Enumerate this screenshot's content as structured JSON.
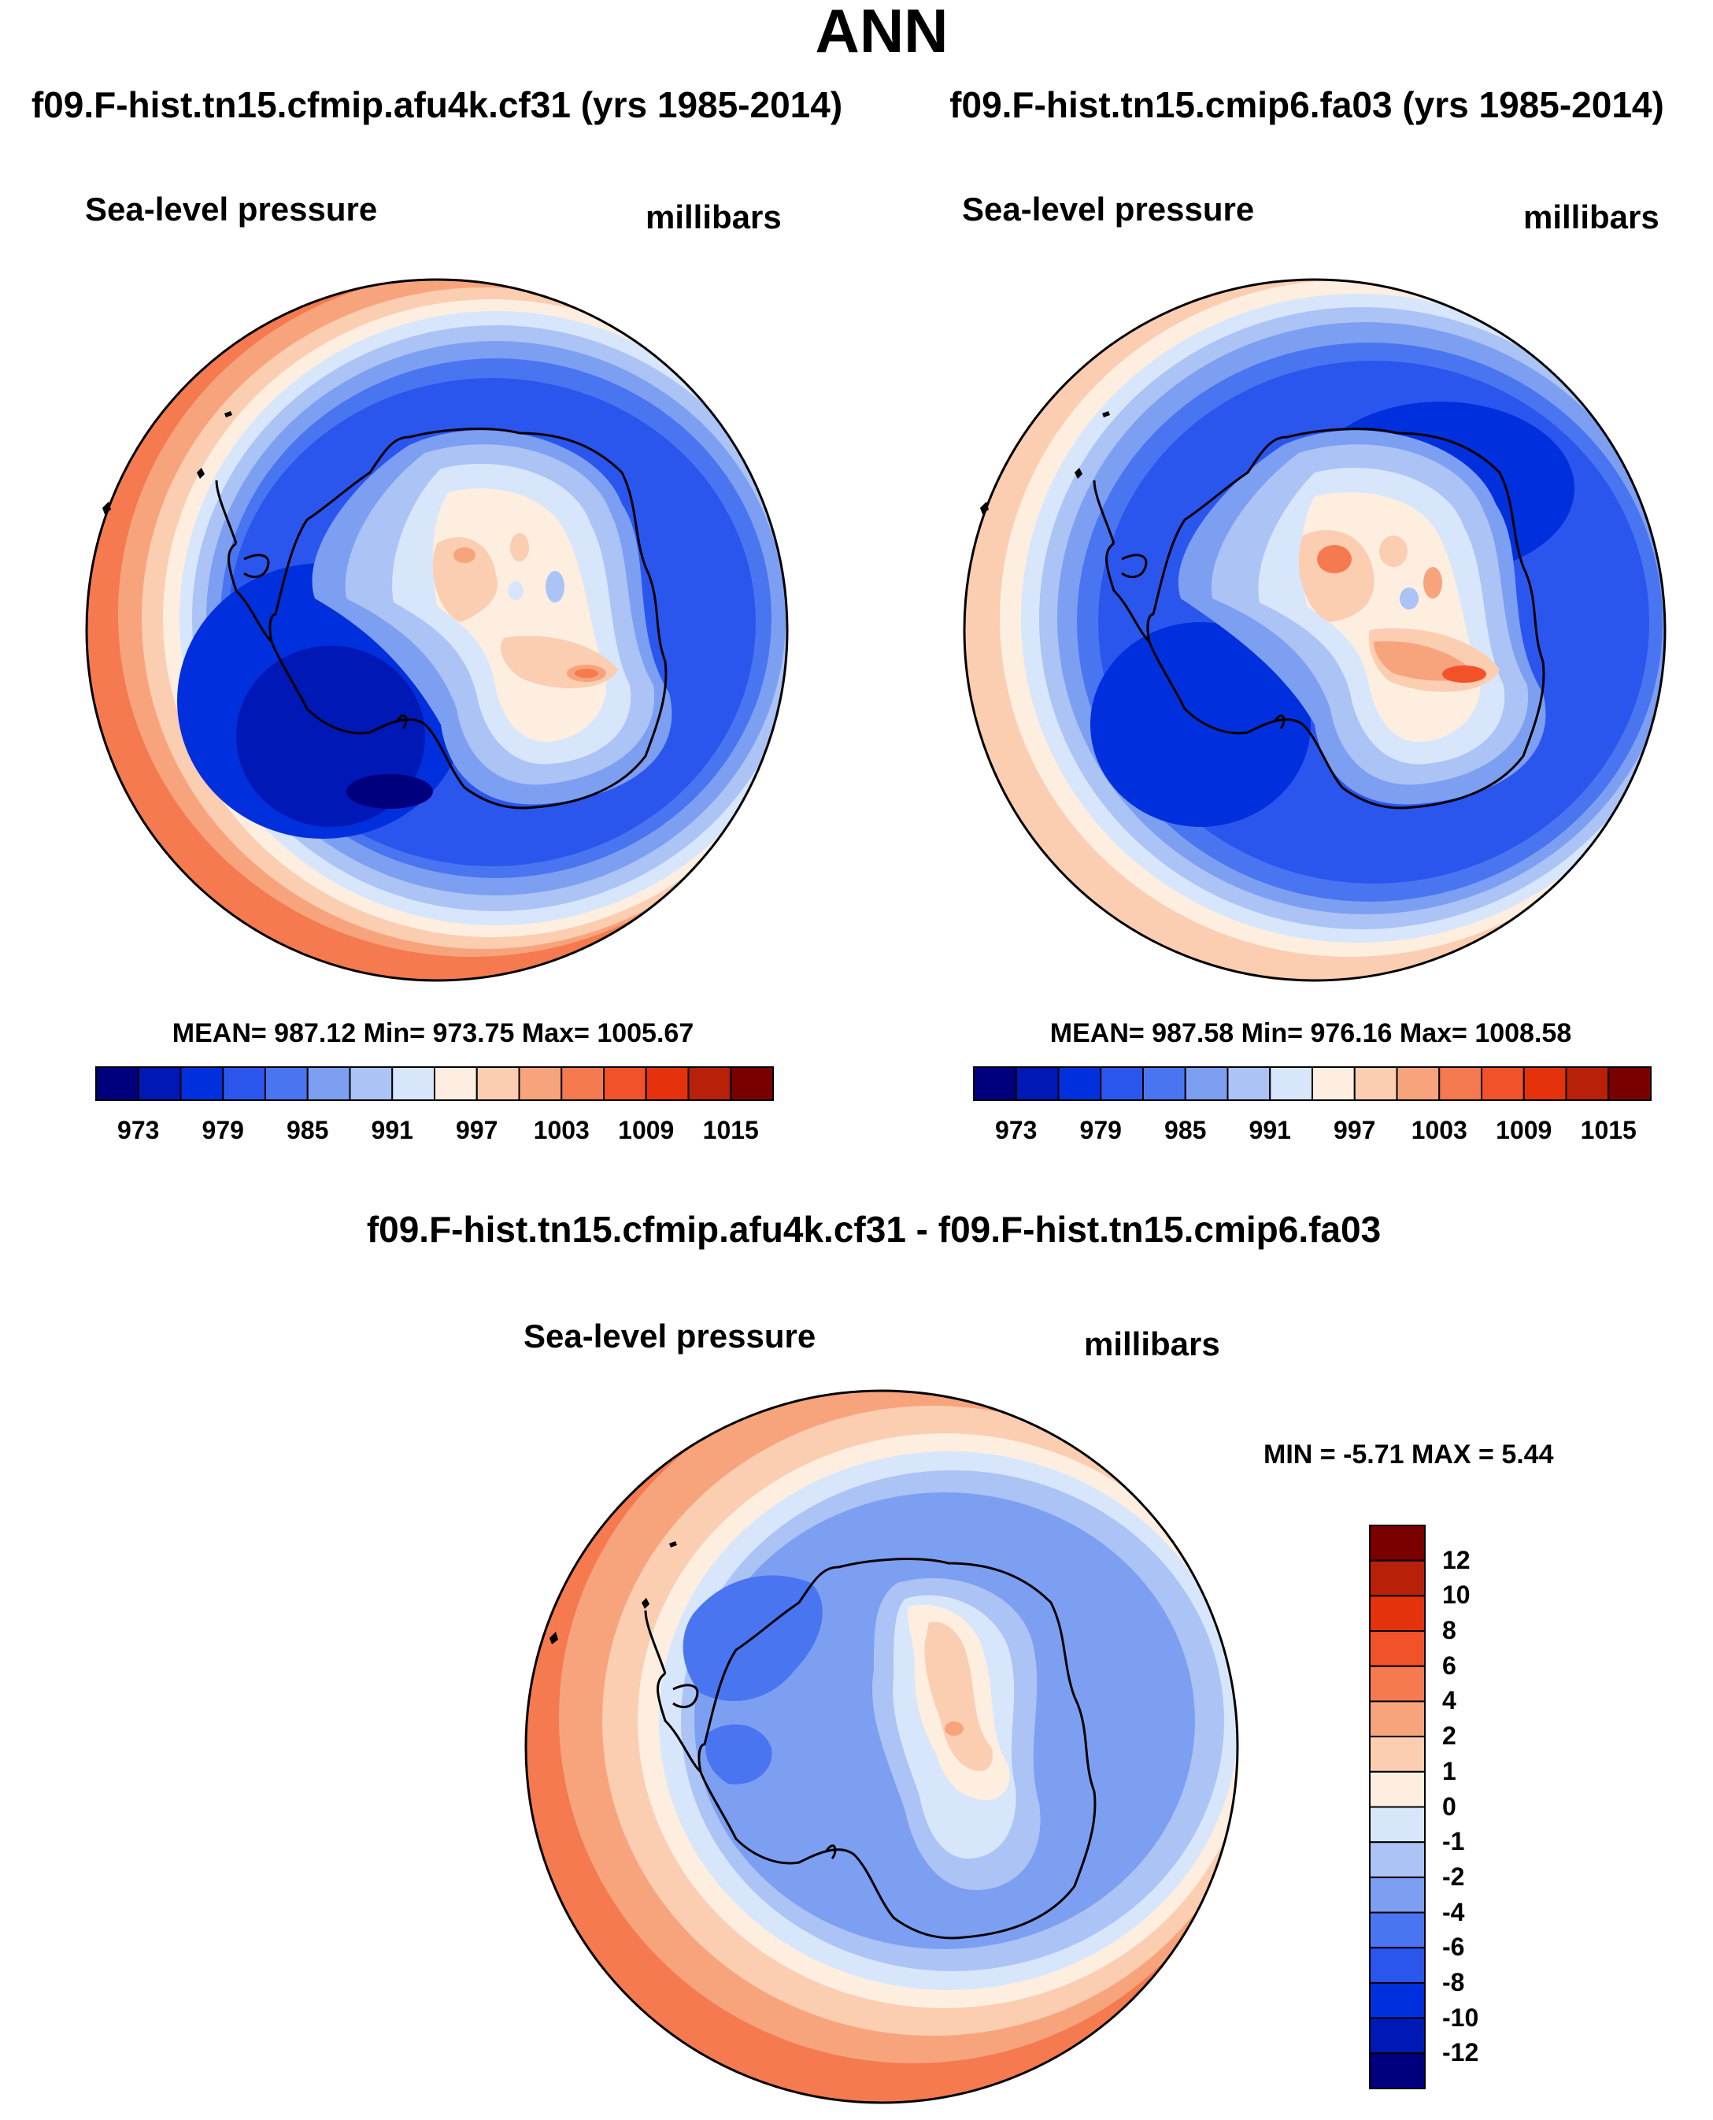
{
  "page": {
    "title": "ANN"
  },
  "colors": {
    "abs_scale": [
      "#00007f",
      "#0018b5",
      "#0030dd",
      "#2b56ee",
      "#4a75f0",
      "#7d9ff2",
      "#abc3f5",
      "#d7e6fb",
      "#fdeee0",
      "#fbcdb1",
      "#f7a47d",
      "#f57a4f",
      "#f2522a",
      "#e4320c",
      "#b8200a",
      "#7a0000"
    ],
    "diff_scale": [
      "#7a0000",
      "#b8200a",
      "#e4320c",
      "#f2522a",
      "#f57a4f",
      "#f7a47d",
      "#fbcdb1",
      "#fdeee0",
      "#d7e6fb",
      "#abc3f5",
      "#7d9ff2",
      "#4a75f0",
      "#2b56ee",
      "#0030dd",
      "#0018b5",
      "#00007f"
    ]
  },
  "panels": [
    {
      "case_title": "f09.F-hist.tn15.cfmip.afu4k.cf31 (yrs 1985-2014)",
      "variable": "Sea-level pressure",
      "units": "millibars",
      "stats": "MEAN= 987.12  Min= 973.75  Max= 1005.67",
      "colorbar_ticks": [
        "973",
        "979",
        "985",
        "991",
        "997",
        "1003",
        "1009",
        "1015"
      ]
    },
    {
      "case_title": "f09.F-hist.tn15.cmip6.fa03 (yrs 1985-2014)",
      "variable": "Sea-level pressure",
      "units": "millibars",
      "stats": "MEAN= 987.58  Min= 976.16  Max= 1008.58",
      "colorbar_ticks": [
        "973",
        "979",
        "985",
        "991",
        "997",
        "1003",
        "1009",
        "1015"
      ]
    }
  ],
  "difference": {
    "title": "f09.F-hist.tn15.cfmip.afu4k.cf31 - f09.F-hist.tn15.cmip6.fa03",
    "variable": "Sea-level pressure",
    "units": "millibars",
    "stats": "MIN =  -5.71 MAX =   5.44",
    "colorbar_ticks": [
      "12",
      "10",
      "8",
      "6",
      "4",
      "2",
      "1",
      "0",
      "-1",
      "-2",
      "-4",
      "-6",
      "-8",
      "-10",
      "-12"
    ]
  },
  "chart_data": [
    {
      "type": "heatmap",
      "title": "f09.F-hist.tn15.cfmip.afu4k.cf31 (yrs 1985-2014)",
      "variable": "Sea-level pressure",
      "units": "millibars",
      "projection": "south polar stereographic",
      "mean": 987.12,
      "min": 973.75,
      "max": 1005.67,
      "contour_levels": [
        973,
        976,
        979,
        982,
        985,
        988,
        991,
        994,
        997,
        1000,
        1003,
        1006,
        1009,
        1012,
        1015
      ]
    },
    {
      "type": "heatmap",
      "title": "f09.F-hist.tn15.cmip6.fa03 (yrs 1985-2014)",
      "variable": "Sea-level pressure",
      "units": "millibars",
      "projection": "south polar stereographic",
      "mean": 987.58,
      "min": 976.16,
      "max": 1008.58,
      "contour_levels": [
        973,
        976,
        979,
        982,
        985,
        988,
        991,
        994,
        997,
        1000,
        1003,
        1006,
        1009,
        1012,
        1015
      ]
    },
    {
      "type": "heatmap",
      "title": "f09.F-hist.tn15.cfmip.afu4k.cf31 - f09.F-hist.tn15.cmip6.fa03",
      "variable": "Sea-level pressure",
      "units": "millibars",
      "projection": "south polar stereographic",
      "min": -5.71,
      "max": 5.44,
      "contour_levels": [
        -12,
        -10,
        -8,
        -6,
        -4,
        -2,
        -1,
        0,
        1,
        2,
        4,
        6,
        8,
        10,
        12
      ]
    }
  ]
}
